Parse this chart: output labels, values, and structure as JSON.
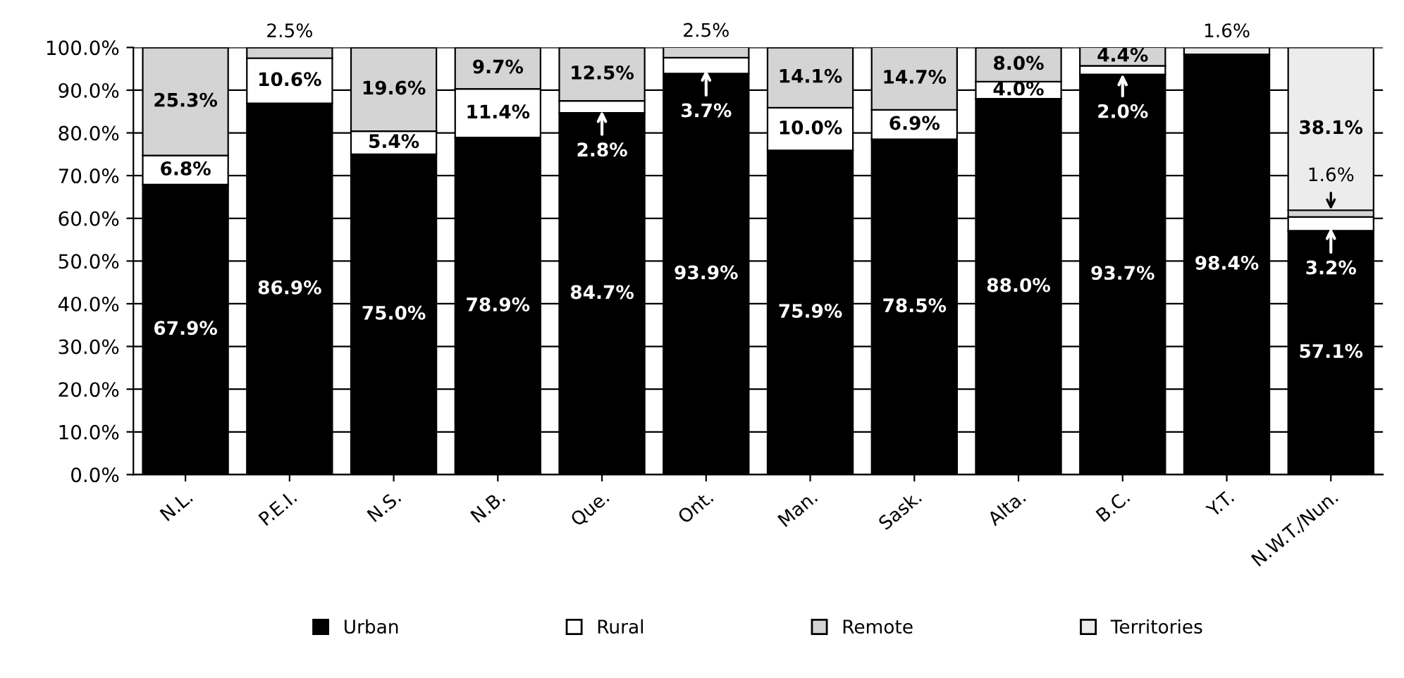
{
  "chart_data": {
    "type": "bar",
    "stacked": true,
    "categories": [
      "N.L.",
      "P.E.I.",
      "N.S.",
      "N.B.",
      "Que.",
      "Ont.",
      "Man.",
      "Sask.",
      "Alta.",
      "B.C.",
      "Y.T.",
      "N.W.T./Nun."
    ],
    "series": [
      {
        "name": "Urban",
        "color": "#000000",
        "values": [
          67.9,
          86.9,
          75.0,
          78.9,
          84.7,
          93.9,
          75.9,
          78.5,
          88.0,
          93.7,
          98.4,
          57.1
        ],
        "value_labels": [
          "67.9%",
          "86.9%",
          "75.0%",
          "78.9%",
          "84.7%",
          "93.9%",
          "75.9%",
          "78.5%",
          "88.0%",
          "93.7%",
          "98.4%",
          "57.1%"
        ]
      },
      {
        "name": "Rural",
        "color": "#ffffff",
        "values": [
          6.8,
          10.6,
          5.4,
          11.4,
          2.8,
          3.7,
          10.0,
          6.9,
          4.0,
          2.0,
          null,
          3.2
        ],
        "value_labels": [
          "6.8%",
          "10.6%",
          "5.4%",
          "11.4%",
          "2.8%",
          "3.7%",
          "10.0%",
          "6.9%",
          "4.0%",
          "2.0%",
          null,
          "3.2%"
        ]
      },
      {
        "name": "Remote",
        "color": "#d4d4d4",
        "values": [
          25.3,
          2.5,
          19.6,
          9.7,
          12.5,
          2.5,
          14.1,
          14.7,
          8.0,
          4.4,
          null,
          1.6
        ],
        "value_labels": [
          "25.3%",
          "2.5%",
          "19.6%",
          "9.7%",
          "12.5%",
          "2.5%",
          "14.1%",
          "14.7%",
          "8.0%",
          "4.4%",
          null,
          "1.6%"
        ]
      },
      {
        "name": "Territories",
        "color": "#ececec",
        "values": [
          null,
          null,
          null,
          null,
          null,
          null,
          null,
          null,
          null,
          null,
          1.6,
          38.1
        ],
        "value_labels": [
          null,
          null,
          null,
          null,
          null,
          null,
          null,
          null,
          null,
          null,
          "1.6%",
          "38.1%"
        ]
      }
    ],
    "ylim": [
      0,
      100
    ],
    "yticks": [
      {
        "value": 0,
        "label": "0.0%"
      },
      {
        "value": 10,
        "label": "10.0%"
      },
      {
        "value": 20,
        "label": "20.0%"
      },
      {
        "value": 30,
        "label": "30.0%"
      },
      {
        "value": 40,
        "label": "40.0%"
      },
      {
        "value": 50,
        "label": "50.0%"
      },
      {
        "value": 60,
        "label": "60.0%"
      },
      {
        "value": 70,
        "label": "70.0%"
      },
      {
        "value": 80,
        "label": "80.0%"
      },
      {
        "value": 90,
        "label": "90.0%"
      },
      {
        "value": 100,
        "label": "100.0%"
      }
    ],
    "grid": "y",
    "legend": "bottom"
  }
}
